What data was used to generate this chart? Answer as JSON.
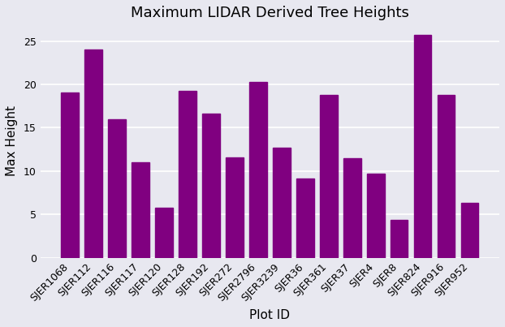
{
  "title": "Maximum LIDAR Derived Tree Heights",
  "xlabel": "Plot ID",
  "ylabel": "Max Height",
  "categories": [
    "SJER1068",
    "SJER112",
    "SJER116",
    "SJER117",
    "SJER120",
    "SJER128",
    "SJER192",
    "SJER272",
    "SJER2796",
    "SJER3239",
    "SJER36",
    "SJER361",
    "SJER37",
    "SJER4",
    "SJER8",
    "SJER824",
    "SJER916",
    "SJER952"
  ],
  "values": [
    19.05,
    24.0,
    16.0,
    11.0,
    5.74,
    19.25,
    16.6,
    11.55,
    20.3,
    12.73,
    9.1,
    18.8,
    11.45,
    9.72,
    4.38,
    25.72,
    18.83,
    6.31
  ],
  "bar_color": "#800080",
  "background_color": "#e8e8f0",
  "ylim": [
    0,
    27
  ],
  "title_fontsize": 13,
  "label_fontsize": 11,
  "tick_fontsize": 9,
  "grid_color": "white",
  "grid_linewidth": 1.2
}
